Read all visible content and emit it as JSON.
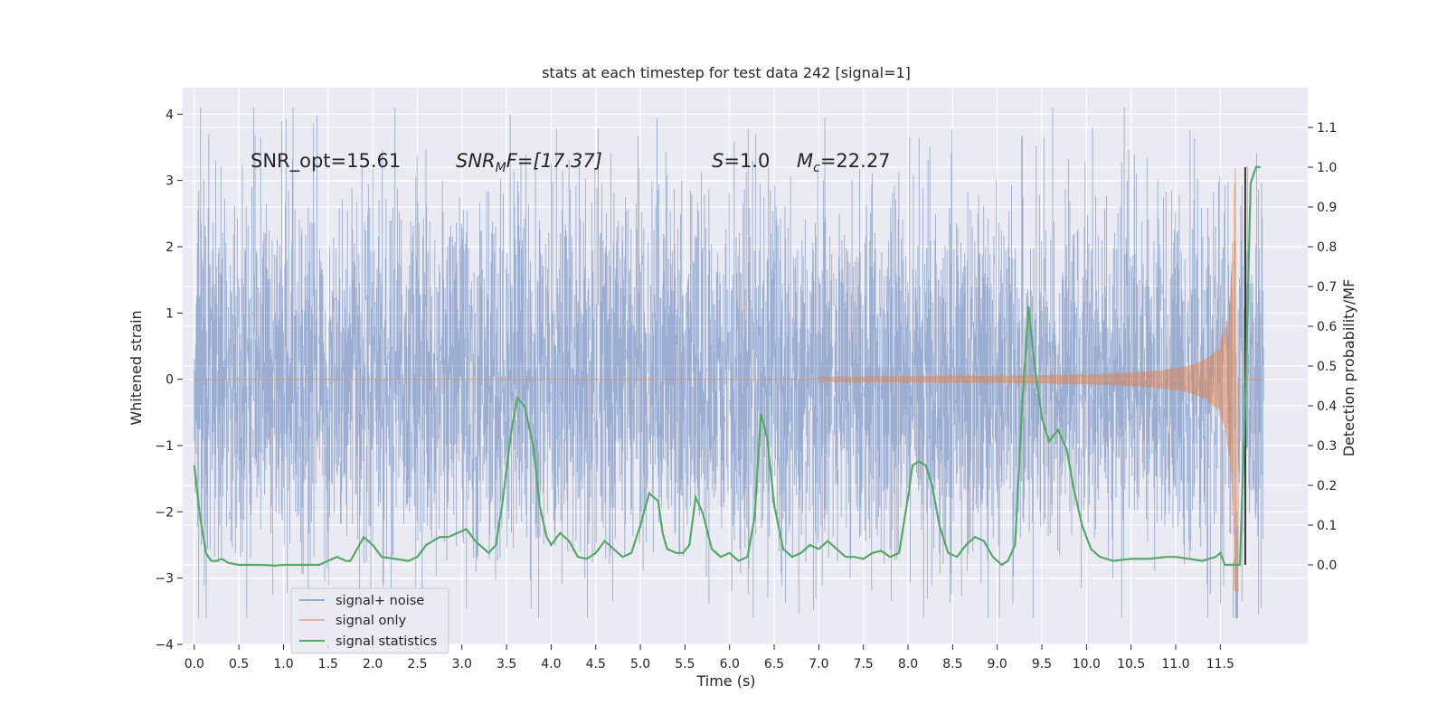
{
  "chart_data": {
    "type": "line",
    "title": "stats at each timestep for test data 242 [signal=1]",
    "xlabel": "Time (s)",
    "ylabel": "Whitened strain",
    "ylabel_right": "Detection probability/MF",
    "xlim": [
      -0.13,
      12.48
    ],
    "ylim": [
      -4.0,
      4.4
    ],
    "ylim_right": [
      -0.2,
      1.2
    ],
    "x_ticks": [
      "0.0",
      "0.5",
      "1.0",
      "1.5",
      "2.0",
      "2.5",
      "3.0",
      "3.5",
      "4.0",
      "4.5",
      "5.0",
      "5.5",
      "6.0",
      "6.5",
      "7.0",
      "7.5",
      "8.0",
      "8.5",
      "9.0",
      "9.5",
      "10.0",
      "10.5",
      "11.0",
      "11.5"
    ],
    "y_ticks": [
      "−4",
      "−3",
      "−2",
      "−1",
      "0",
      "1",
      "2",
      "3",
      "4"
    ],
    "y_ticks_right": [
      "0.0",
      "0.1",
      "0.2",
      "0.3",
      "0.4",
      "0.5",
      "0.6",
      "0.7",
      "0.8",
      "0.9",
      "1.0",
      "1.1"
    ],
    "grid": true,
    "legend_placement": "lower-left",
    "annotations": {
      "snr_opt": "SNR_opt=15.61",
      "snr_mf_main": "SNR",
      "snr_mf_sub": "M",
      "snr_mf_tail": "F=[17.37]",
      "s_main": "S",
      "s_tail": "=1.0",
      "mc_main": "M",
      "mc_sub": "c",
      "mc_tail": "=22.27"
    },
    "series": [
      {
        "name": "signal+ noise",
        "color": "#4c72b0",
        "x_range": [
          0.0,
          11.99
        ],
        "y_range_approx": [
          -3.6,
          4.1
        ]
      },
      {
        "name": "signal only",
        "color": "#dd8452",
        "chirp": {
          "t_start": 7.0,
          "t_merge": 11.68,
          "amp_start": 0.03,
          "amp_peak": 3.2
        }
      },
      {
        "name": "signal statistics",
        "color": "#55a868",
        "axis": "right",
        "x": [
          0.0,
          0.06,
          0.13,
          0.19,
          0.25,
          0.31,
          0.38,
          0.5,
          0.6,
          0.75,
          0.9,
          1.0,
          1.2,
          1.4,
          1.55,
          1.6,
          1.7,
          1.75,
          1.8,
          1.9,
          2.0,
          2.1,
          2.25,
          2.4,
          2.5,
          2.6,
          2.75,
          2.85,
          2.95,
          3.05,
          3.15,
          3.25,
          3.3,
          3.38,
          3.45,
          3.55,
          3.62,
          3.7,
          3.8,
          3.87,
          3.95,
          4.0,
          4.1,
          4.2,
          4.3,
          4.4,
          4.5,
          4.6,
          4.7,
          4.75,
          4.8,
          4.9,
          5.0,
          5.1,
          5.2,
          5.25,
          5.3,
          5.4,
          5.48,
          5.55,
          5.62,
          5.7,
          5.8,
          5.9,
          6.0,
          6.1,
          6.2,
          6.28,
          6.35,
          6.42,
          6.5,
          6.6,
          6.7,
          6.8,
          6.9,
          7.0,
          7.1,
          7.2,
          7.3,
          7.4,
          7.5,
          7.6,
          7.7,
          7.8,
          7.9,
          8.0,
          8.05,
          8.12,
          8.2,
          8.27,
          8.35,
          8.45,
          8.55,
          8.65,
          8.75,
          8.85,
          8.95,
          9.05,
          9.12,
          9.2,
          9.28,
          9.35,
          9.42,
          9.5,
          9.58,
          9.68,
          9.78,
          9.85,
          9.95,
          10.05,
          10.15,
          10.3,
          10.5,
          10.7,
          10.9,
          11.0,
          11.15,
          11.3,
          11.45,
          11.5,
          11.55,
          11.65,
          11.72,
          11.78,
          11.84,
          11.9,
          11.95
        ],
        "y": [
          0.25,
          0.13,
          0.03,
          0.01,
          0.01,
          0.015,
          0.005,
          0.0,
          0.0,
          0.0,
          -0.002,
          0.0,
          0.0,
          0.0,
          0.015,
          0.02,
          0.01,
          0.01,
          0.03,
          0.07,
          0.05,
          0.02,
          0.015,
          0.01,
          0.02,
          0.05,
          0.07,
          0.07,
          0.08,
          0.09,
          0.06,
          0.04,
          0.03,
          0.05,
          0.15,
          0.33,
          0.42,
          0.4,
          0.3,
          0.15,
          0.07,
          0.05,
          0.08,
          0.06,
          0.02,
          0.015,
          0.03,
          0.06,
          0.04,
          0.03,
          0.02,
          0.03,
          0.1,
          0.18,
          0.16,
          0.08,
          0.04,
          0.03,
          0.03,
          0.05,
          0.17,
          0.13,
          0.04,
          0.02,
          0.03,
          0.01,
          0.02,
          0.12,
          0.38,
          0.32,
          0.15,
          0.04,
          0.02,
          0.03,
          0.05,
          0.04,
          0.06,
          0.04,
          0.02,
          0.02,
          0.015,
          0.03,
          0.035,
          0.02,
          0.03,
          0.17,
          0.25,
          0.26,
          0.25,
          0.2,
          0.1,
          0.03,
          0.02,
          0.05,
          0.07,
          0.06,
          0.02,
          0.0,
          0.01,
          0.05,
          0.4,
          0.65,
          0.5,
          0.37,
          0.31,
          0.34,
          0.29,
          0.2,
          0.1,
          0.04,
          0.02,
          0.01,
          0.015,
          0.015,
          0.02,
          0.02,
          0.015,
          0.01,
          0.02,
          0.03,
          0.0,
          0.0,
          0.0,
          0.4,
          0.96,
          1.0,
          1.0
        ]
      }
    ]
  },
  "legend": {
    "items": [
      {
        "label": "signal+ noise",
        "color": "#4c72b0"
      },
      {
        "label": "signal only",
        "color": "#dd8452"
      },
      {
        "label": "signal statistics",
        "color": "#55a868"
      }
    ]
  },
  "colors": {
    "plot_bg": "#eaeaf2",
    "grid": "#ffffff",
    "text": "#262626",
    "threshold_line": "#333333"
  }
}
